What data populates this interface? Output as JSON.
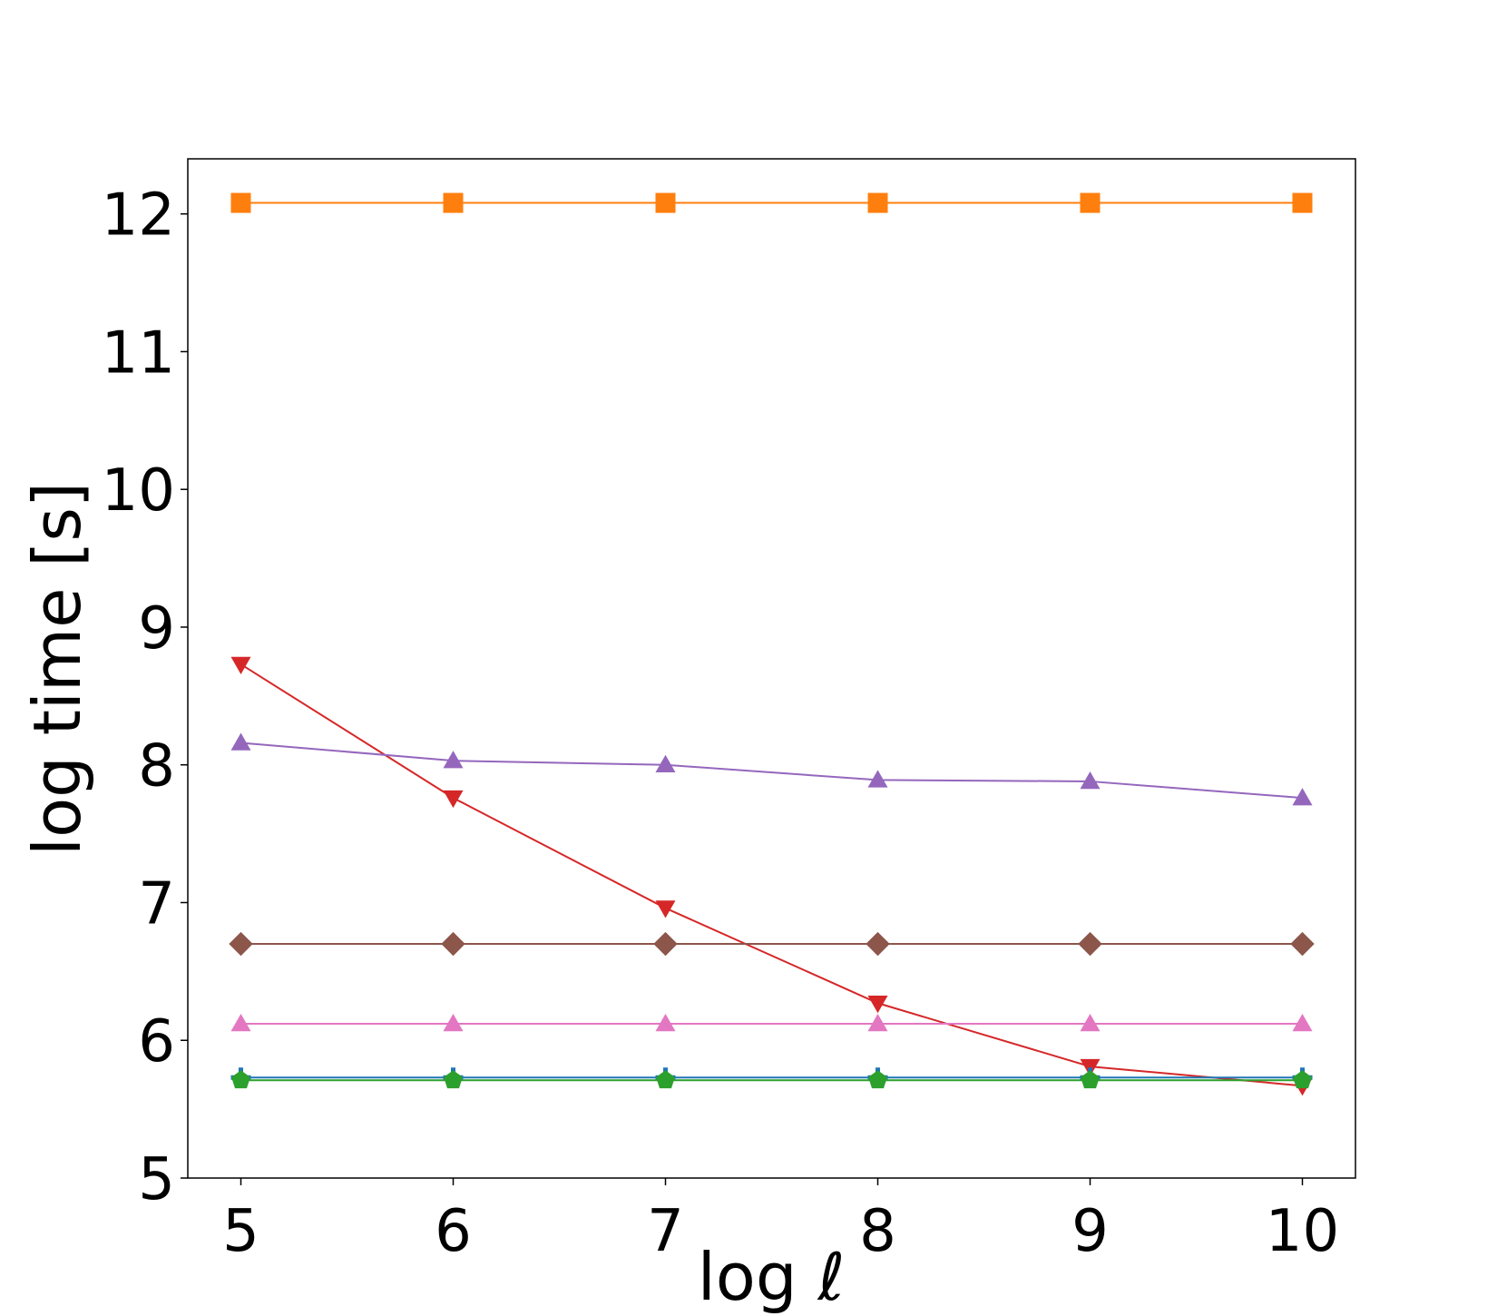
{
  "chart_data": {
    "type": "line",
    "title": "",
    "xlabel": "log ℓ",
    "ylabel": "log time [s]",
    "x": [
      5,
      6,
      7,
      8,
      9,
      10
    ],
    "xticks": [
      "5",
      "6",
      "7",
      "8",
      "9",
      "10"
    ],
    "yticks": [
      "5",
      "6",
      "7",
      "8",
      "9",
      "10",
      "11",
      "12"
    ],
    "xlim": [
      4.75,
      10.25
    ],
    "ylim": [
      5.0,
      12.4
    ],
    "grid": false,
    "legend": "none",
    "series": [
      {
        "color": "#ff7f0e",
        "marker": "square",
        "values": [
          12.08,
          12.08,
          12.08,
          12.08,
          12.08,
          12.08
        ]
      },
      {
        "color": "#d62728",
        "marker": "triangle-down",
        "values": [
          8.73,
          7.76,
          6.96,
          6.27,
          5.81,
          5.67
        ]
      },
      {
        "color": "#9467bd",
        "marker": "triangle-up",
        "values": [
          8.16,
          8.03,
          8.0,
          7.89,
          7.88,
          7.76
        ]
      },
      {
        "color": "#8c564b",
        "marker": "diamond",
        "values": [
          6.7,
          6.7,
          6.7,
          6.7,
          6.7,
          6.7
        ]
      },
      {
        "color": "#e377c2",
        "marker": "triangle-up",
        "values": [
          6.12,
          6.12,
          6.12,
          6.12,
          6.12,
          6.12
        ]
      },
      {
        "color": "#1f77b4",
        "marker": "plus",
        "values": [
          5.73,
          5.73,
          5.73,
          5.73,
          5.73,
          5.73
        ]
      },
      {
        "color": "#2ca02c",
        "marker": "pentagon",
        "values": [
          5.71,
          5.71,
          5.71,
          5.71,
          5.71,
          5.71
        ]
      }
    ]
  }
}
